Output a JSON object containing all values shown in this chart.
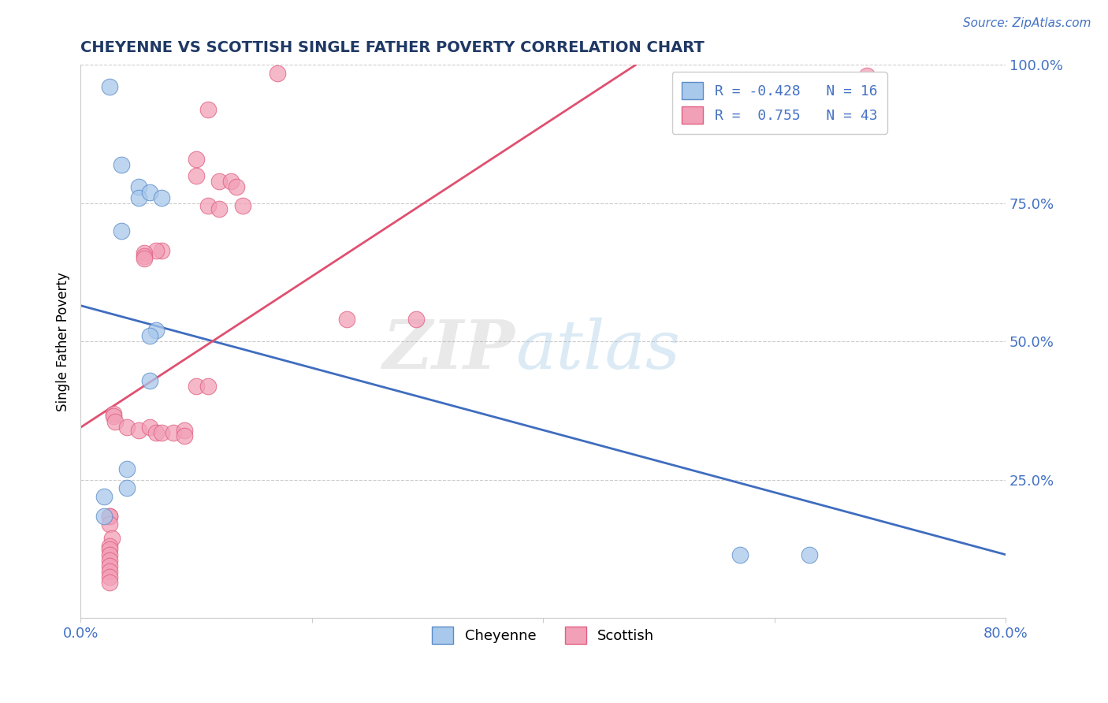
{
  "title": "CHEYENNE VS SCOTTISH SINGLE FATHER POVERTY CORRELATION CHART",
  "source": "Source: ZipAtlas.com",
  "ylabel": "Single Father Poverty",
  "watermark_zip": "ZIP",
  "watermark_atlas": "atlas",
  "xlim": [
    0.0,
    0.8
  ],
  "ylim": [
    0.0,
    1.0
  ],
  "xticks": [
    0.0,
    0.2,
    0.4,
    0.6,
    0.8
  ],
  "xtick_labels": [
    "0.0%",
    "",
    "",
    "",
    "80.0%"
  ],
  "yticks": [
    0.0,
    0.25,
    0.5,
    0.75,
    1.0
  ],
  "ytick_labels_right": [
    "",
    "25.0%",
    "50.0%",
    "75.0%",
    "100.0%"
  ],
  "cheyenne_color": "#A8C8EC",
  "scottish_color": "#F2A0B8",
  "cheyenne_edge_color": "#5B8CC8",
  "scottish_edge_color": "#E06080",
  "cheyenne_line_color": "#3F6DBF",
  "scottish_line_color": "#E05070",
  "cheyenne_R": -0.428,
  "cheyenne_N": 16,
  "scottish_R": 0.755,
  "scottish_N": 43,
  "blue_line_x0": 0.0,
  "blue_line_y0": 0.565,
  "blue_line_x1": 0.8,
  "blue_line_y1": 0.115,
  "pink_line_x0": 0.0,
  "pink_line_y0": 0.345,
  "pink_line_x1": 0.48,
  "pink_line_y1": 1.0,
  "cheyenne_x": [
    0.025,
    0.035,
    0.035,
    0.05,
    0.05,
    0.06,
    0.07,
    0.065,
    0.06,
    0.06,
    0.04,
    0.04,
    0.02,
    0.02,
    0.57,
    0.63
  ],
  "cheyenne_y": [
    0.96,
    0.82,
    0.7,
    0.78,
    0.76,
    0.77,
    0.76,
    0.52,
    0.51,
    0.43,
    0.27,
    0.235,
    0.22,
    0.185,
    0.115,
    0.115
  ],
  "scottish_x": [
    0.17,
    0.11,
    0.1,
    0.1,
    0.12,
    0.13,
    0.135,
    0.11,
    0.14,
    0.12,
    0.025,
    0.025,
    0.025,
    0.027,
    0.025,
    0.025,
    0.025,
    0.025,
    0.025,
    0.025,
    0.025,
    0.025,
    0.028,
    0.028,
    0.03,
    0.04,
    0.05,
    0.06,
    0.065,
    0.07,
    0.08,
    0.09,
    0.09,
    0.1,
    0.11,
    0.23,
    0.29,
    0.07,
    0.065,
    0.055,
    0.055,
    0.055,
    0.68
  ],
  "scottish_y": [
    0.985,
    0.92,
    0.83,
    0.8,
    0.79,
    0.79,
    0.78,
    0.745,
    0.745,
    0.74,
    0.185,
    0.185,
    0.17,
    0.145,
    0.13,
    0.125,
    0.115,
    0.105,
    0.095,
    0.085,
    0.075,
    0.065,
    0.37,
    0.365,
    0.355,
    0.345,
    0.34,
    0.345,
    0.335,
    0.335,
    0.335,
    0.34,
    0.33,
    0.42,
    0.42,
    0.54,
    0.54,
    0.665,
    0.665,
    0.66,
    0.655,
    0.65,
    0.98
  ]
}
